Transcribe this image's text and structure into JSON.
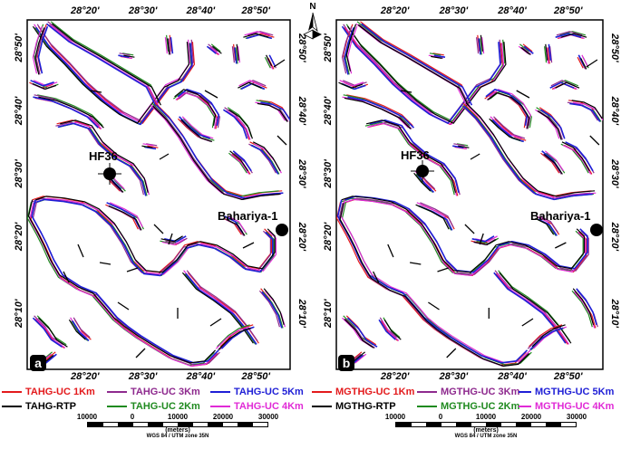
{
  "panel_a": {
    "label": "a",
    "top_ticks": [
      "28°20'",
      "28°30'",
      "28°40'",
      "28°50'"
    ],
    "bottom_ticks": [
      "28°20'",
      "28°30'",
      "28°40'",
      "28°50'"
    ],
    "left_ticks": [
      "28°50'",
      "28°40'",
      "28°30'",
      "28°20'",
      "28°10'"
    ],
    "right_ticks": [
      "28°50'",
      "28°40'",
      "28°30'",
      "28°20'",
      "28°10'"
    ],
    "well_hf": "HF36",
    "well_bahariya": "Bahariya-1",
    "legend": [
      {
        "label": "TAHG-UC 1Km",
        "color": "#e31a1c"
      },
      {
        "label": "TAHG-UC 3Km",
        "color": "#8e2a8e"
      },
      {
        "label": "TAHG-UC 5Km",
        "color": "#1f1fd6"
      },
      {
        "label": "TAHG-RTP",
        "color": "#000000"
      },
      {
        "label": "TAHG-UC 2Km",
        "color": "#1f8a1f"
      },
      {
        "label": "TAHG-UC 4Km",
        "color": "#e02ad6"
      }
    ]
  },
  "panel_b": {
    "label": "b",
    "top_ticks": [
      "28°20'",
      "28°30'",
      "28°40'",
      "28°50'"
    ],
    "bottom_ticks": [
      "28°20'",
      "28°30'",
      "28°40'",
      "28°50'"
    ],
    "left_ticks": [
      "28°50'",
      "28°40'",
      "28°30'",
      "28°20'",
      "28°10'"
    ],
    "right_ticks": [
      "28°50'",
      "28°40'",
      "28°30'",
      "28°20'",
      "28°10'"
    ],
    "well_hf": "HF36",
    "well_bahariya": "Bahariya-1",
    "legend": [
      {
        "label": "MGTHG-UC 1Km",
        "color": "#e31a1c"
      },
      {
        "label": "MGTHG-UC 3Km",
        "color": "#8e2a8e"
      },
      {
        "label": "MGTHG-UC 5Km",
        "color": "#1f1fd6"
      },
      {
        "label": "MGTHG-RTP",
        "color": "#000000"
      },
      {
        "label": "MGTHG-UC 2Km",
        "color": "#1f8a1f"
      },
      {
        "label": "MGTHG-UC 4Km",
        "color": "#e02ad6"
      }
    ]
  },
  "north_arrow": "N",
  "scale_bar": {
    "ticks": [
      "10000",
      "0",
      "10000",
      "20000",
      "30000"
    ],
    "unit": "(meters)",
    "projection": "WGS 84 / UTM zone 35N"
  }
}
